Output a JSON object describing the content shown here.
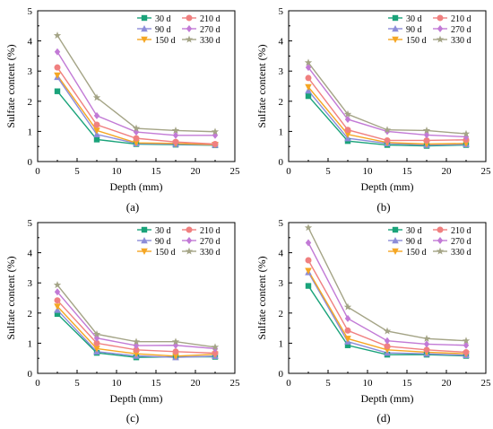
{
  "chart_data": [
    {
      "panel_label": "(a)",
      "type": "line",
      "xlabel": "Depth (mm)",
      "ylabel": "Sulfate content (%)",
      "xlim": [
        0,
        25
      ],
      "ylim": [
        0,
        5
      ],
      "xticks": [
        "0",
        "5",
        "10",
        "15",
        "20",
        "25"
      ],
      "yticks": [
        "0",
        "1",
        "2",
        "3",
        "4",
        "5"
      ],
      "grid": false,
      "legend_position": "top-right",
      "x": [
        2.5,
        7.5,
        12.5,
        17.5,
        22.5
      ],
      "series": [
        {
          "name": "30 d",
          "color": "#1aa37a",
          "marker": "square",
          "values": [
            2.33,
            0.73,
            0.58,
            0.56,
            0.54
          ]
        },
        {
          "name": "90 d",
          "color": "#8c8cd9",
          "marker": "triangle-up",
          "values": [
            2.8,
            0.9,
            0.6,
            0.58,
            0.55
          ]
        },
        {
          "name": "150 d",
          "color": "#f5a623",
          "marker": "triangle-down",
          "values": [
            2.86,
            1.03,
            0.62,
            0.6,
            0.56
          ]
        },
        {
          "name": "210 d",
          "color": "#f08080",
          "marker": "circle",
          "values": [
            3.12,
            1.22,
            0.77,
            0.65,
            0.58
          ]
        },
        {
          "name": "270 d",
          "color": "#c27ad6",
          "marker": "diamond",
          "values": [
            3.64,
            1.52,
            0.98,
            0.87,
            0.87
          ]
        },
        {
          "name": "330 d",
          "color": "#a4a486",
          "marker": "star",
          "values": [
            4.18,
            2.12,
            1.1,
            1.03,
            0.99
          ]
        }
      ]
    },
    {
      "panel_label": "(b)",
      "type": "line",
      "xlabel": "Depth (mm)",
      "ylabel": "Sulfate content (%)",
      "xlim": [
        0,
        25
      ],
      "ylim": [
        0,
        5
      ],
      "xticks": [
        "0",
        "5",
        "10",
        "15",
        "20",
        "25"
      ],
      "yticks": [
        "0",
        "1",
        "2",
        "3",
        "4",
        "5"
      ],
      "grid": false,
      "legend_position": "top-right",
      "x": [
        2.5,
        7.5,
        12.5,
        17.5,
        22.5
      ],
      "series": [
        {
          "name": "30 d",
          "color": "#1aa37a",
          "marker": "square",
          "values": [
            2.17,
            0.68,
            0.55,
            0.52,
            0.55
          ]
        },
        {
          "name": "90 d",
          "color": "#8c8cd9",
          "marker": "triangle-up",
          "values": [
            2.35,
            0.77,
            0.6,
            0.55,
            0.57
          ]
        },
        {
          "name": "150 d",
          "color": "#f5a623",
          "marker": "triangle-down",
          "values": [
            2.47,
            0.9,
            0.63,
            0.58,
            0.6
          ]
        },
        {
          "name": "210 d",
          "color": "#f08080",
          "marker": "circle",
          "values": [
            2.77,
            1.05,
            0.7,
            0.7,
            0.72
          ]
        },
        {
          "name": "270 d",
          "color": "#c27ad6",
          "marker": "diamond",
          "values": [
            3.12,
            1.4,
            1.0,
            0.88,
            0.82
          ]
        },
        {
          "name": "330 d",
          "color": "#a4a486",
          "marker": "star",
          "values": [
            3.28,
            1.57,
            1.05,
            1.03,
            0.92
          ]
        }
      ]
    },
    {
      "panel_label": "(c)",
      "type": "line",
      "xlabel": "Depth (mm)",
      "ylabel": "Sulfate content (%)",
      "xlim": [
        0,
        25
      ],
      "ylim": [
        0,
        5
      ],
      "xticks": [
        "0",
        "5",
        "10",
        "15",
        "20",
        "25"
      ],
      "yticks": [
        "0",
        "1",
        "2",
        "3",
        "4",
        "5"
      ],
      "grid": false,
      "legend_position": "top-right",
      "x": [
        2.5,
        7.5,
        12.5,
        17.5,
        22.5
      ],
      "series": [
        {
          "name": "30 d",
          "color": "#1aa37a",
          "marker": "square",
          "values": [
            1.97,
            0.68,
            0.53,
            0.55,
            0.55
          ]
        },
        {
          "name": "90 d",
          "color": "#8c8cd9",
          "marker": "triangle-up",
          "values": [
            2.1,
            0.72,
            0.58,
            0.53,
            0.57
          ]
        },
        {
          "name": "150 d",
          "color": "#f5a623",
          "marker": "triangle-down",
          "values": [
            2.22,
            0.82,
            0.65,
            0.57,
            0.63
          ]
        },
        {
          "name": "210 d",
          "color": "#f08080",
          "marker": "circle",
          "values": [
            2.42,
            1.0,
            0.78,
            0.72,
            0.67
          ]
        },
        {
          "name": "270 d",
          "color": "#c27ad6",
          "marker": "diamond",
          "values": [
            2.7,
            1.17,
            0.92,
            0.93,
            0.82
          ]
        },
        {
          "name": "330 d",
          "color": "#a4a486",
          "marker": "star",
          "values": [
            2.93,
            1.3,
            1.05,
            1.05,
            0.87
          ]
        }
      ]
    },
    {
      "panel_label": "(d)",
      "type": "line",
      "xlabel": "Depth (mm)",
      "ylabel": "Sulfate content (%)",
      "xlim": [
        0,
        25
      ],
      "ylim": [
        0,
        5
      ],
      "xticks": [
        "0",
        "5",
        "10",
        "15",
        "20",
        "25"
      ],
      "yticks": [
        "0",
        "1",
        "2",
        "3",
        "4",
        "5"
      ],
      "grid": false,
      "legend_position": "top-right",
      "x": [
        2.5,
        7.5,
        12.5,
        17.5,
        22.5
      ],
      "series": [
        {
          "name": "30 d",
          "color": "#1aa37a",
          "marker": "square",
          "values": [
            2.9,
            0.93,
            0.62,
            0.62,
            0.58
          ]
        },
        {
          "name": "90 d",
          "color": "#8c8cd9",
          "marker": "triangle-up",
          "values": [
            3.35,
            1.05,
            0.68,
            0.65,
            0.6
          ]
        },
        {
          "name": "150 d",
          "color": "#f5a623",
          "marker": "triangle-down",
          "values": [
            3.4,
            1.15,
            0.78,
            0.7,
            0.65
          ]
        },
        {
          "name": "210 d",
          "color": "#f08080",
          "marker": "circle",
          "values": [
            3.75,
            1.42,
            0.9,
            0.78,
            0.7
          ]
        },
        {
          "name": "270 d",
          "color": "#c27ad6",
          "marker": "diamond",
          "values": [
            4.33,
            1.82,
            1.08,
            0.97,
            0.93
          ]
        },
        {
          "name": "330 d",
          "color": "#a4a486",
          "marker": "star",
          "values": [
            4.83,
            2.2,
            1.4,
            1.15,
            1.08
          ]
        }
      ]
    }
  ]
}
